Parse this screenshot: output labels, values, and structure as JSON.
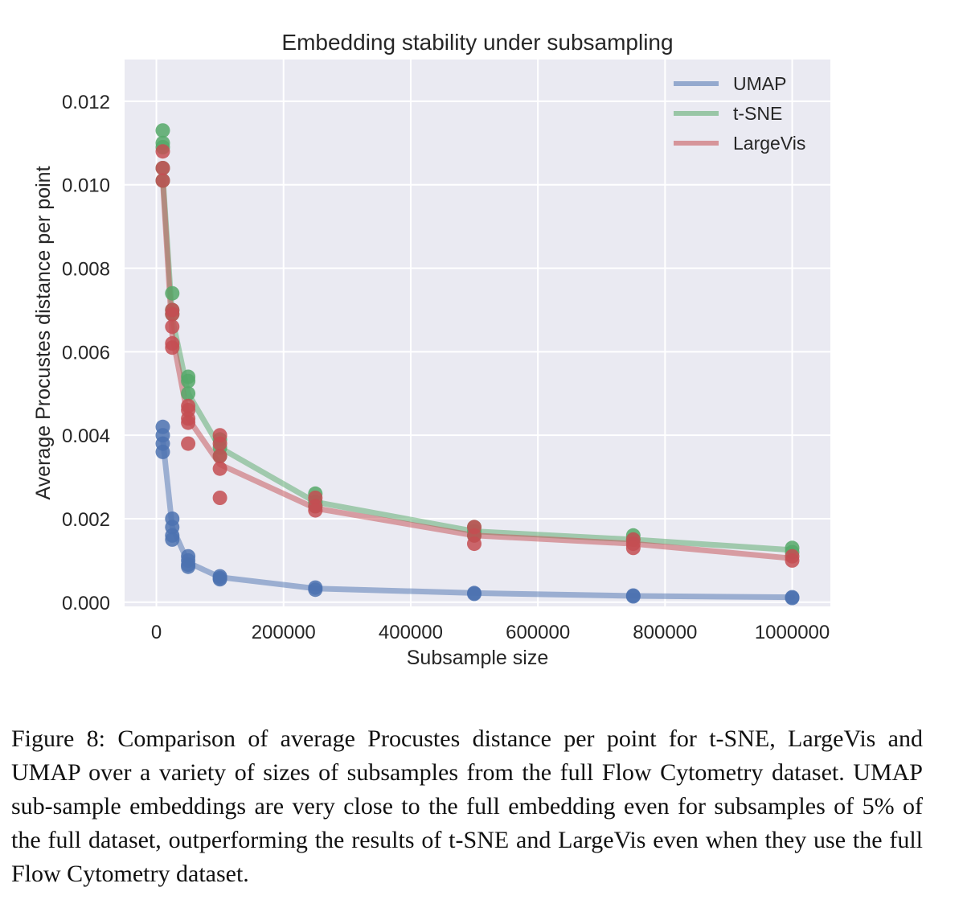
{
  "figure": {
    "caption": "Figure 8: Comparison of average Procustes distance per point for t-SNE, LargeVis and UMAP over a variety of sizes of subsamples from the full Flow Cytometry dataset. UMAP sub-sample embeddings are very close to the full embedding even for subsamples of 5% of the full dataset, outperforming the results of t-SNE and LargeVis even when they use the full Flow Cytometry dataset."
  },
  "chart_data": {
    "type": "line",
    "title": "Embedding stability under subsampling",
    "xlabel": "Subsample size",
    "ylabel": "Average Procustes distance per point",
    "xlim": [
      -50000,
      1060000
    ],
    "ylim": [
      -0.0001,
      0.013
    ],
    "x_ticks": [
      0,
      200000,
      400000,
      600000,
      800000,
      1000000
    ],
    "x_tick_labels": [
      "0",
      "200000",
      "400000",
      "600000",
      "800000",
      "1000000"
    ],
    "y_ticks": [
      0.0,
      0.002,
      0.004,
      0.006,
      0.008,
      0.01,
      0.012
    ],
    "y_tick_labels": [
      "0.000",
      "0.002",
      "0.004",
      "0.006",
      "0.008",
      "0.010",
      "0.012"
    ],
    "grid": true,
    "legend_position": "top-right",
    "background": "#eaeaf2",
    "series": [
      {
        "name": "UMAP",
        "color": "#4c72b0",
        "line": {
          "x": [
            10000,
            25000,
            50000,
            100000,
            250000,
            500000,
            750000,
            1000000
          ],
          "y": [
            0.0039,
            0.0018,
            0.00095,
            0.0006,
            0.00033,
            0.00022,
            0.00015,
            0.00012
          ]
        },
        "points": [
          [
            10000,
            0.0042
          ],
          [
            10000,
            0.004
          ],
          [
            10000,
            0.0038
          ],
          [
            10000,
            0.0036
          ],
          [
            25000,
            0.002
          ],
          [
            25000,
            0.0018
          ],
          [
            25000,
            0.0016
          ],
          [
            25000,
            0.0015
          ],
          [
            50000,
            0.0011
          ],
          [
            50000,
            0.001
          ],
          [
            50000,
            0.0009
          ],
          [
            50000,
            0.00085
          ],
          [
            100000,
            0.00062
          ],
          [
            100000,
            0.00058
          ],
          [
            100000,
            0.00055
          ],
          [
            250000,
            0.00035
          ],
          [
            250000,
            0.0003
          ],
          [
            500000,
            0.00022
          ],
          [
            500000,
            0.0002
          ],
          [
            750000,
            0.00016
          ],
          [
            750000,
            0.00014
          ],
          [
            1000000,
            0.00012
          ],
          [
            1000000,
            0.0001
          ]
        ]
      },
      {
        "name": "t-SNE",
        "color": "#55a868",
        "line": {
          "x": [
            10000,
            25000,
            50000,
            100000,
            250000,
            500000,
            750000,
            1000000
          ],
          "y": [
            0.0102,
            0.0068,
            0.005,
            0.0037,
            0.0024,
            0.0017,
            0.0015,
            0.00125
          ]
        },
        "points": [
          [
            10000,
            0.0113
          ],
          [
            10000,
            0.011
          ],
          [
            10000,
            0.0109
          ],
          [
            10000,
            0.0104
          ],
          [
            10000,
            0.0101
          ],
          [
            25000,
            0.0074
          ],
          [
            25000,
            0.007
          ],
          [
            25000,
            0.0069
          ],
          [
            50000,
            0.0054
          ],
          [
            50000,
            0.0053
          ],
          [
            50000,
            0.005
          ],
          [
            100000,
            0.0039
          ],
          [
            100000,
            0.0037
          ],
          [
            100000,
            0.0035
          ],
          [
            250000,
            0.0026
          ],
          [
            250000,
            0.0024
          ],
          [
            250000,
            0.0023
          ],
          [
            500000,
            0.0018
          ],
          [
            500000,
            0.0017
          ],
          [
            500000,
            0.0016
          ],
          [
            750000,
            0.0016
          ],
          [
            750000,
            0.0015
          ],
          [
            1000000,
            0.0013
          ],
          [
            1000000,
            0.0012
          ]
        ]
      },
      {
        "name": "LargeVis",
        "color": "#c44e52",
        "line": {
          "x": [
            10000,
            25000,
            50000,
            100000,
            250000,
            500000,
            750000,
            1000000
          ],
          "y": [
            0.0101,
            0.0064,
            0.0044,
            0.0033,
            0.00225,
            0.0016,
            0.0014,
            0.00105
          ]
        },
        "points": [
          [
            10000,
            0.0108
          ],
          [
            10000,
            0.0104
          ],
          [
            10000,
            0.0101
          ],
          [
            25000,
            0.007
          ],
          [
            25000,
            0.0069
          ],
          [
            25000,
            0.0066
          ],
          [
            25000,
            0.0062
          ],
          [
            25000,
            0.0061
          ],
          [
            50000,
            0.0047
          ],
          [
            50000,
            0.0046
          ],
          [
            50000,
            0.0044
          ],
          [
            50000,
            0.0043
          ],
          [
            50000,
            0.0038
          ],
          [
            100000,
            0.004
          ],
          [
            100000,
            0.0038
          ],
          [
            100000,
            0.0035
          ],
          [
            100000,
            0.0032
          ],
          [
            100000,
            0.0025
          ],
          [
            250000,
            0.0025
          ],
          [
            250000,
            0.0023
          ],
          [
            250000,
            0.0022
          ],
          [
            500000,
            0.0018
          ],
          [
            500000,
            0.0016
          ],
          [
            500000,
            0.0014
          ],
          [
            750000,
            0.0015
          ],
          [
            750000,
            0.0014
          ],
          [
            750000,
            0.0013
          ],
          [
            1000000,
            0.0011
          ],
          [
            1000000,
            0.001
          ]
        ]
      }
    ]
  }
}
